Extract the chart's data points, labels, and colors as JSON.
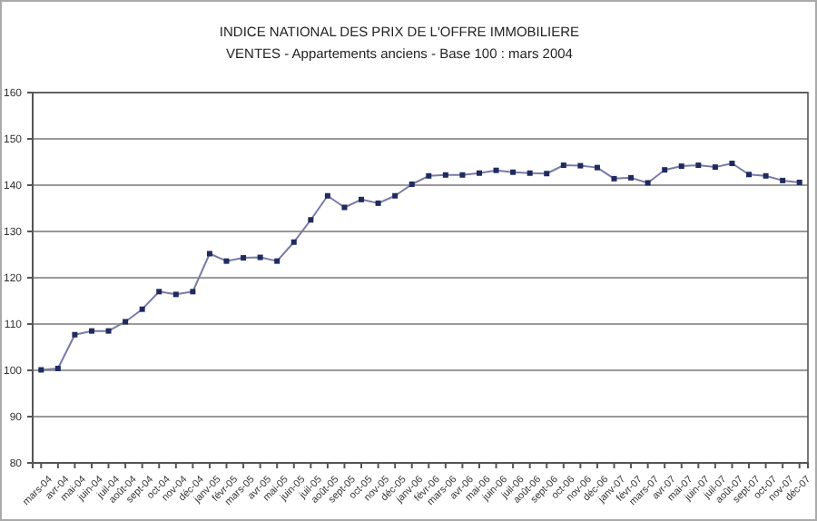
{
  "chart_data": {
    "type": "line",
    "title": "INDICE NATIONAL DES PRIX DE L'OFFRE IMMOBILIERE",
    "subtitle": "VENTES - Appartements anciens - Base 100 : mars 2004",
    "categories": [
      "mars-04",
      "avr-04",
      "mai-04",
      "juin-04",
      "juil-04",
      "août-04",
      "sept-04",
      "oct-04",
      "nov-04",
      "déc-04",
      "janv-05",
      "févr-05",
      "mars-05",
      "avr-05",
      "mai-05",
      "juin-05",
      "juil-05",
      "août-05",
      "sept-05",
      "oct-05",
      "nov-05",
      "déc-05",
      "janv-06",
      "févr-06",
      "mars-06",
      "avr-06",
      "mai-06",
      "juin-06",
      "juil-06",
      "août-06",
      "sept-06",
      "oct-06",
      "nov-06",
      "déc-06",
      "janv-07",
      "févr-07",
      "mars-07",
      "avr-07",
      "mai-07",
      "juin-07",
      "juil-07",
      "août-07",
      "sept-07",
      "oct-07",
      "nov-07",
      "déc-07"
    ],
    "series": [
      {
        "color": "#1f2a5e",
        "values": [
          100.1,
          100.4,
          107.7,
          108.5,
          108.5,
          110.5,
          113.2,
          117,
          116.4,
          117,
          125.2,
          123.6,
          124.3,
          124.4,
          123.6,
          127.7,
          132.5,
          137.7,
          135.2,
          136.9,
          136.1,
          137.7,
          140.2,
          142,
          142.2,
          142.2,
          142.6,
          143.2,
          142.8,
          142.6,
          142.5,
          144.3,
          144.2,
          143.8,
          141.4,
          141.6,
          140.5,
          143.3,
          144.1,
          144.3,
          143.9,
          144.7,
          142.3,
          142,
          141,
          140.6
        ]
      }
    ],
    "ylim": [
      80,
      160
    ],
    "yticks": [
      80,
      90,
      100,
      110,
      120,
      130,
      140,
      150,
      160
    ],
    "grid": "y",
    "marker": "square",
    "line_style": "solid"
  }
}
